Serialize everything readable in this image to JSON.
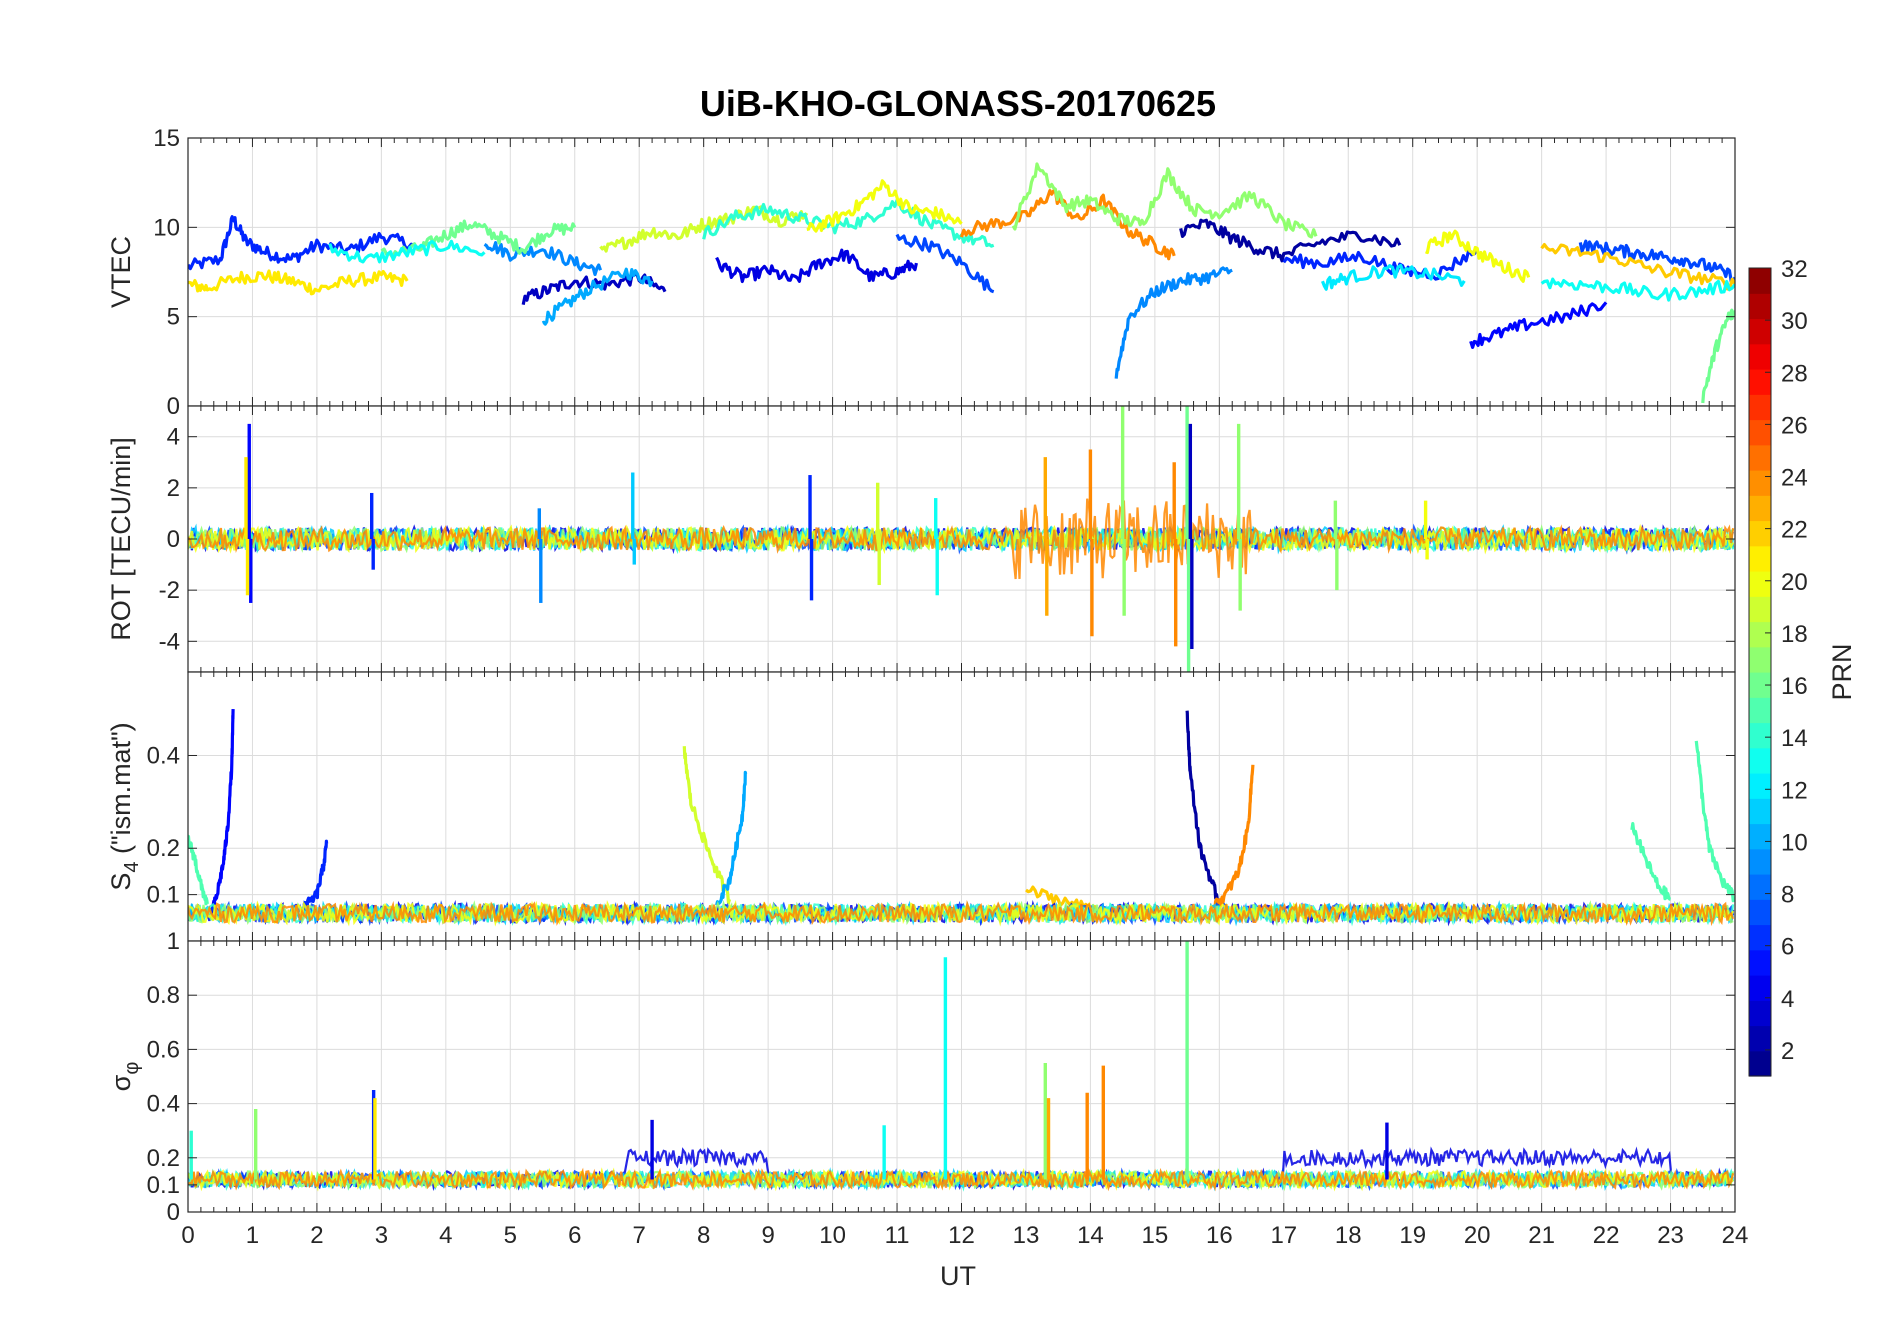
{
  "chart_data": {
    "type": "line",
    "title": "UiB-KHO-GLONASS-20170625",
    "xlabel": "UT",
    "xlim": [
      0,
      24
    ],
    "xticks": [
      "0",
      "1",
      "2",
      "3",
      "4",
      "5",
      "6",
      "7",
      "8",
      "9",
      "10",
      "11",
      "12",
      "13",
      "14",
      "15",
      "16",
      "17",
      "18",
      "19",
      "20",
      "21",
      "22",
      "23",
      "24"
    ],
    "colorbar": {
      "label": "PRN",
      "range": [
        1,
        32
      ],
      "ticks": [
        "2",
        "4",
        "6",
        "8",
        "10",
        "12",
        "14",
        "16",
        "18",
        "20",
        "22",
        "24",
        "26",
        "28",
        "30",
        "32"
      ],
      "colormap": "jet"
    },
    "panels": [
      {
        "id": "vtec",
        "ylabel": "VTEC",
        "ylim": [
          0,
          15
        ],
        "yticks": [
          "0",
          "5",
          "10",
          "15"
        ],
        "series": [
          {
            "prn": 6,
            "x": [
              0,
              0.5,
              0.7,
              0.9,
              1.2,
              1.6,
              2.0,
              2.5,
              3.0,
              3.5
            ],
            "y": [
              7.8,
              8.2,
              10.5,
              9.2,
              8.6,
              8.2,
              9.0,
              8.7,
              9.5,
              9.0
            ]
          },
          {
            "prn": 21,
            "x": [
              0,
              0.3,
              0.8,
              1.2,
              1.6,
              2.0,
              2.5,
              3.0,
              3.4
            ],
            "y": [
              6.8,
              6.6,
              7.2,
              7.3,
              7.0,
              6.5,
              7.0,
              7.2,
              7.0
            ]
          },
          {
            "prn": 3,
            "x": [
              5.2,
              5.6,
              6.0,
              6.5,
              7.0,
              7.4
            ],
            "y": [
              6.0,
              6.5,
              7.0,
              6.8,
              7.2,
              6.4
            ]
          },
          {
            "prn": 10,
            "x": [
              5.5,
              5.8,
              6.2,
              6.8,
              7.2
            ],
            "y": [
              4.8,
              5.5,
              6.5,
              7.5,
              7.0
            ]
          },
          {
            "prn": 9,
            "x": [
              4.6,
              5.0,
              5.5,
              6.0,
              6.4
            ],
            "y": [
              9.2,
              8.5,
              8.8,
              8.0,
              7.6
            ]
          },
          {
            "prn": 16,
            "x": [
              3.0,
              3.6,
              4.0,
              4.4,
              4.8,
              5.2,
              5.6,
              6.0
            ],
            "y": [
              8.5,
              8.8,
              9.6,
              10.2,
              9.5,
              8.8,
              9.8,
              10.0
            ]
          },
          {
            "prn": 13,
            "x": [
              2.2,
              2.8,
              3.4,
              4.0,
              4.6
            ],
            "y": [
              8.8,
              8.2,
              8.6,
              9.0,
              8.6
            ]
          },
          {
            "prn": 4,
            "x": [
              8.2,
              8.6,
              9.0,
              9.4,
              9.8,
              10.2,
              10.6,
              11.0,
              11.3
            ],
            "y": [
              8.0,
              7.2,
              7.6,
              7.0,
              8.0,
              8.5,
              7.2,
              7.5,
              8.0
            ]
          },
          {
            "prn": 19,
            "x": [
              6.4,
              6.8,
              7.2,
              7.6,
              8.0,
              8.4,
              8.8,
              9.2,
              9.6
            ],
            "y": [
              8.6,
              9.2,
              9.8,
              9.5,
              10.2,
              10.5,
              11.0,
              10.4,
              10.8
            ]
          },
          {
            "prn": 14,
            "x": [
              8.0,
              8.5,
              9.0,
              9.5,
              10.0,
              10.5,
              11.0,
              11.5,
              12.0,
              12.5
            ],
            "y": [
              9.6,
              10.6,
              11.0,
              10.5,
              10.0,
              10.4,
              11.4,
              10.2,
              9.5,
              9.0
            ]
          },
          {
            "prn": 20,
            "x": [
              9.6,
              10.0,
              10.4,
              10.8,
              11.2,
              11.6,
              12.0
            ],
            "y": [
              9.8,
              10.4,
              11.2,
              12.4,
              11.0,
              10.8,
              10.2
            ]
          },
          {
            "prn": 7,
            "x": [
              11.0,
              11.5,
              12.0,
              12.5
            ],
            "y": [
              9.4,
              9.0,
              8.0,
              6.4
            ]
          },
          {
            "prn": 24,
            "x": [
              12.0,
              12.5,
              13.0,
              13.4,
              13.8,
              14.2,
              14.6,
              15.0,
              15.3
            ],
            "y": [
              9.8,
              10.2,
              10.6,
              12.0,
              10.4,
              11.5,
              9.8,
              9.0,
              8.4
            ]
          },
          {
            "prn": 17,
            "x": [
              12.8,
              13.2,
              13.6,
              14.0,
              14.4,
              14.8,
              15.2,
              15.6,
              16.0,
              16.5,
              17.0,
              17.5
            ],
            "y": [
              10.0,
              13.5,
              11.2,
              11.5,
              10.5,
              10.2,
              13.0,
              11.0,
              10.8,
              11.8,
              10.2,
              9.5
            ]
          },
          {
            "prn": 9,
            "x": [
              14.4,
              14.6,
              15.0,
              15.4,
              15.8,
              16.2
            ],
            "y": [
              1.8,
              5.0,
              6.4,
              7.0,
              7.2,
              7.6
            ]
          },
          {
            "prn": 2,
            "x": [
              15.4,
              15.8,
              16.2,
              16.6,
              17.0,
              17.6,
              18.2,
              18.8
            ],
            "y": [
              9.8,
              10.2,
              9.4,
              8.8,
              8.4,
              9.2,
              9.6,
              9.0
            ]
          },
          {
            "prn": 6,
            "x": [
              17.0,
              17.6,
              18.2,
              18.8,
              19.4,
              20.0
            ],
            "y": [
              8.2,
              8.0,
              8.4,
              7.6,
              7.4,
              8.8
            ]
          },
          {
            "prn": 12,
            "x": [
              17.6,
              18.0,
              18.6,
              19.2,
              19.8
            ],
            "y": [
              6.8,
              7.2,
              7.6,
              7.4,
              7.0
            ]
          },
          {
            "prn": 20,
            "x": [
              19.2,
              19.6,
              20.0,
              20.4,
              20.8
            ],
            "y": [
              8.8,
              9.6,
              8.6,
              7.8,
              7.2
            ]
          },
          {
            "prn": 5,
            "x": [
              19.9,
              20.3,
              20.8,
              21.4,
              22.0
            ],
            "y": [
              3.6,
              4.0,
              4.6,
              5.0,
              5.8
            ]
          },
          {
            "prn": 7,
            "x": [
              21.6,
              22.0,
              22.4,
              22.8,
              23.2,
              23.6,
              24.0
            ],
            "y": [
              9.0,
              8.8,
              8.6,
              8.4,
              8.2,
              7.8,
              7.2
            ]
          },
          {
            "prn": 22,
            "x": [
              21.0,
              21.6,
              22.2,
              22.8,
              23.4,
              24.0
            ],
            "y": [
              8.8,
              8.6,
              8.2,
              7.6,
              7.2,
              6.8
            ]
          },
          {
            "prn": 13,
            "x": [
              21.0,
              21.6,
              22.2,
              22.8,
              23.4,
              24.0
            ],
            "y": [
              7.0,
              6.8,
              6.6,
              6.2,
              6.4,
              6.8
            ]
          },
          {
            "prn": 16,
            "x": [
              23.5,
              23.7,
              23.9,
              24.0
            ],
            "y": [
              0.5,
              3.2,
              5.0,
              5.2
            ]
          }
        ]
      },
      {
        "id": "rot",
        "ylabel": "ROT [TECU/min]",
        "ylim": [
          -5.2,
          5.2
        ],
        "yticks": [
          "-4",
          "-2",
          "0",
          "2",
          "4"
        ],
        "spikes": [
          {
            "prn": 5,
            "x": 0.95,
            "top": 4.5,
            "bottom": -2.5
          },
          {
            "prn": 21,
            "x": 0.9,
            "top": 3.2,
            "bottom": -2.2
          },
          {
            "prn": 6,
            "x": 2.85,
            "top": 1.8,
            "bottom": -1.2
          },
          {
            "prn": 9,
            "x": 5.45,
            "top": 1.2,
            "bottom": -2.5
          },
          {
            "prn": 11,
            "x": 6.9,
            "top": 2.6,
            "bottom": -1.0
          },
          {
            "prn": 6,
            "x": 9.65,
            "top": 2.5,
            "bottom": -2.4
          },
          {
            "prn": 19,
            "x": 10.7,
            "top": 2.2,
            "bottom": -1.8
          },
          {
            "prn": 13,
            "x": 11.6,
            "top": 1.6,
            "bottom": -2.2
          },
          {
            "prn": 23,
            "x": 13.3,
            "top": 3.2,
            "bottom": -3.0
          },
          {
            "prn": 24,
            "x": 14.0,
            "top": 3.5,
            "bottom": -3.8
          },
          {
            "prn": 17,
            "x": 14.5,
            "top": 5.2,
            "bottom": -3.0
          },
          {
            "prn": 16,
            "x": 15.5,
            "top": 5.2,
            "bottom": -5.2
          },
          {
            "prn": 3,
            "x": 15.55,
            "top": 4.5,
            "bottom": -4.3
          },
          {
            "prn": 24,
            "x": 15.3,
            "top": 3.0,
            "bottom": -4.2
          },
          {
            "prn": 17,
            "x": 16.3,
            "top": 4.5,
            "bottom": -2.8
          },
          {
            "prn": 17,
            "x": 17.8,
            "top": 1.5,
            "bottom": -2.0
          },
          {
            "prn": 20,
            "x": 19.2,
            "top": 1.5,
            "bottom": -0.8
          }
        ]
      },
      {
        "id": "s4",
        "ylabel": "S4 (\"ism.mat\")",
        "ylabel_main": "S",
        "ylabel_sub": "4",
        "ylabel_rest": " (\"ism.mat\")",
        "ylim": [
          0,
          0.58
        ],
        "yticks": [
          "0.1",
          "0.2",
          "0.4"
        ],
        "series": [
          {
            "prn": 5,
            "x": [
              0.35,
              0.45,
              0.55,
              0.62,
              0.68,
              0.7
            ],
            "y": [
              0.05,
              0.1,
              0.17,
              0.25,
              0.38,
              0.5
            ]
          },
          {
            "prn": 15,
            "x": [
              0.0,
              0.1,
              0.2,
              0.3
            ],
            "y": [
              0.22,
              0.18,
              0.12,
              0.08
            ]
          },
          {
            "prn": 6,
            "x": [
              1.8,
              2.0,
              2.1,
              2.15
            ],
            "y": [
              0.07,
              0.1,
              0.16,
              0.21
            ]
          },
          {
            "prn": 19,
            "x": [
              7.7,
              7.8,
              8.0,
              8.2,
              8.4
            ],
            "y": [
              0.41,
              0.3,
              0.22,
              0.15,
              0.09
            ]
          },
          {
            "prn": 10,
            "x": [
              8.2,
              8.4,
              8.5,
              8.6,
              8.65
            ],
            "y": [
              0.08,
              0.13,
              0.2,
              0.27,
              0.36
            ]
          },
          {
            "prn": 2,
            "x": [
              15.5,
              15.55,
              15.7,
              15.9,
              16.0
            ],
            "y": [
              0.49,
              0.36,
              0.2,
              0.12,
              0.08
            ]
          },
          {
            "prn": 24,
            "x": [
              15.9,
              16.1,
              16.3,
              16.45,
              16.52
            ],
            "y": [
              0.07,
              0.1,
              0.15,
              0.25,
              0.38
            ]
          },
          {
            "prn": 15,
            "x": [
              23.4,
              23.5,
              23.6,
              23.8,
              24.0
            ],
            "y": [
              0.44,
              0.3,
              0.2,
              0.13,
              0.09
            ]
          },
          {
            "prn": 15,
            "x": [
              22.4,
              22.6,
              22.8,
              23.0
            ],
            "y": [
              0.25,
              0.18,
              0.12,
              0.09
            ]
          },
          {
            "prn": 22,
            "x": [
              13.0,
              13.5,
              14.0,
              14.5,
              15.0
            ],
            "y": [
              0.11,
              0.09,
              0.07,
              0.06,
              0.06
            ]
          }
        ]
      },
      {
        "id": "sigma_phi",
        "ylabel": "σφ",
        "ylabel_main": "σ",
        "ylabel_sub": "φ",
        "ylim": [
          0,
          1
        ],
        "yticks": [
          "0",
          "0.1",
          "0.2",
          "0.4",
          "0.6",
          "0.8",
          "1"
        ],
        "spikes": [
          {
            "prn": 13,
            "x": 11.75,
            "top": 0.94
          },
          {
            "prn": 16,
            "x": 15.5,
            "top": 1.0
          },
          {
            "prn": 17,
            "x": 13.3,
            "top": 0.55
          },
          {
            "prn": 24,
            "x": 14.2,
            "top": 0.54
          },
          {
            "prn": 24,
            "x": 13.95,
            "top": 0.44
          },
          {
            "prn": 23,
            "x": 13.35,
            "top": 0.42
          },
          {
            "prn": 6,
            "x": 2.88,
            "top": 0.45
          },
          {
            "prn": 21,
            "x": 2.9,
            "top": 0.42
          },
          {
            "prn": 17,
            "x": 1.05,
            "top": 0.38
          },
          {
            "prn": 14,
            "x": 0.05,
            "top": 0.3
          },
          {
            "prn": 13,
            "x": 10.8,
            "top": 0.32
          },
          {
            "prn": 4,
            "x": 7.2,
            "top": 0.34
          },
          {
            "prn": 4,
            "x": 18.6,
            "top": 0.33
          }
        ]
      }
    ]
  }
}
